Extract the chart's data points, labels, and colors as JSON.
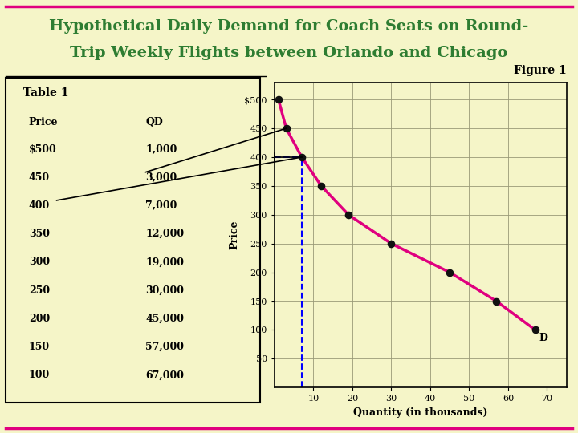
{
  "title_line1": "Hypothetical Daily Demand for Coach Seats on Round-",
  "title_line2": "Trip Weekly Flights between Orlando and Chicago",
  "title_color": "#2e7d32",
  "bg_color": "#f5f5c8",
  "table_title": "Table 1",
  "table_headers": [
    "Price",
    "QD"
  ],
  "table_data": [
    [
      "$500",
      "1,000"
    ],
    [
      "450",
      "3,000"
    ],
    [
      "400",
      "7,000"
    ],
    [
      "350",
      "12,000"
    ],
    [
      "300",
      "19,000"
    ],
    [
      "250",
      "30,000"
    ],
    [
      "200",
      "45,000"
    ],
    [
      "150",
      "57,000"
    ],
    [
      "100",
      "67,000"
    ]
  ],
  "fig_label": "Figure 1",
  "graph_ylabel": "Price",
  "graph_xlabel": "Quantity (in thousands)",
  "prices": [
    500,
    450,
    400,
    350,
    300,
    250,
    200,
    150,
    100
  ],
  "quantities": [
    1,
    3,
    7,
    12,
    19,
    30,
    45,
    57,
    67
  ],
  "curve_color": "#e0007f",
  "dot_color": "#111111",
  "dashed_x": 7,
  "dashed_y": 400,
  "yticks": [
    50,
    100,
    150,
    200,
    250,
    300,
    350,
    400,
    450,
    500
  ],
  "xticks": [
    10,
    20,
    30,
    40,
    50,
    60,
    70
  ],
  "ylim": [
    0,
    530
  ],
  "xlim": [
    0,
    75
  ],
  "grid_color": "#999977",
  "plot_bg": "#f5f5c8"
}
